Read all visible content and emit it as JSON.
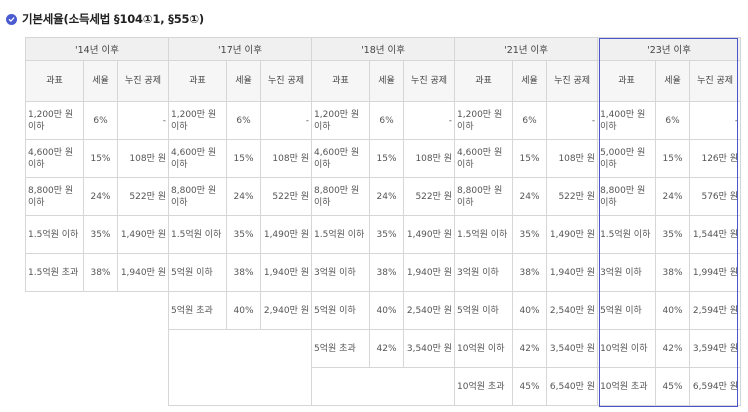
{
  "heading": {
    "icon": "check-circle-icon",
    "text": "기본세율(소득세법 §104①1, §55①)",
    "accent": "#4a5bd0"
  },
  "highlight_color": "#4a55c8",
  "periods": [
    {
      "label": "'14년 이후",
      "headers": [
        "과표",
        "세율",
        "누진 공제"
      ],
      "rows": [
        [
          "1,200만 원 이하",
          "6%",
          "-"
        ],
        [
          "4,600만 원 이하",
          "15%",
          "108만 원"
        ],
        [
          "8,800만 원 이하",
          "24%",
          "522만 원"
        ],
        [
          "1.5억원 이하",
          "35%",
          "1,490만 원"
        ],
        [
          "1.5억원 초과",
          "38%",
          "1,940만 원"
        ]
      ]
    },
    {
      "label": "'17년 이후",
      "headers": [
        "과표",
        "세율",
        "누진 공제"
      ],
      "rows": [
        [
          "1,200만 원 이하",
          "6%",
          "-"
        ],
        [
          "4,600만 원 이하",
          "15%",
          "108만 원"
        ],
        [
          "8,800만 원 이하",
          "24%",
          "522만 원"
        ],
        [
          "1.5억원 이하",
          "35%",
          "1,490만 원"
        ],
        [
          "5억원 이하",
          "38%",
          "1,940만 원"
        ],
        [
          "5억원 초과",
          "40%",
          "2,940만 원"
        ]
      ]
    },
    {
      "label": "'18년 이후",
      "headers": [
        "과표",
        "세율",
        "누진 공제"
      ],
      "rows": [
        [
          "1,200만 원 이하",
          "6%",
          "-"
        ],
        [
          "4,600만 원 이하",
          "15%",
          "108만 원"
        ],
        [
          "8,800만 원 이하",
          "24%",
          "522만 원"
        ],
        [
          "1.5억원 이하",
          "35%",
          "1,490만 원"
        ],
        [
          "3억원 이하",
          "38%",
          "1,940만 원"
        ],
        [
          "5억원 이하",
          "40%",
          "2,540만 원"
        ],
        [
          "5억원 초과",
          "42%",
          "3,540만 원"
        ]
      ]
    },
    {
      "label": "'21년 이후",
      "headers": [
        "과표",
        "세율",
        "누진 공제"
      ],
      "rows": [
        [
          "1,200만 원 이하",
          "6%",
          "-"
        ],
        [
          "4,600만 원 이하",
          "15%",
          "108만 원"
        ],
        [
          "8,800만 원 이하",
          "24%",
          "522만 원"
        ],
        [
          "1.5억원 이하",
          "35%",
          "1,490만 원"
        ],
        [
          "3억원 이하",
          "38%",
          "1,940만 원"
        ],
        [
          "5억원 이하",
          "40%",
          "2,540만 원"
        ],
        [
          "10억원 이하",
          "42%",
          "3,540만 원"
        ],
        [
          "10억원 초과",
          "45%",
          "6,540만 원"
        ]
      ]
    },
    {
      "label": "'23년 이후",
      "headers": [
        "과표",
        "세율",
        "누진 공제"
      ],
      "rows": [
        [
          "1,400만 원 이하",
          "6%",
          "-"
        ],
        [
          "5,000만 원 이하",
          "15%",
          "126만 원"
        ],
        [
          "8,800만 원 이하",
          "24%",
          "576만 원"
        ],
        [
          "1.5억원 이하",
          "35%",
          "1,544만 원"
        ],
        [
          "3억원 이하",
          "38%",
          "1,994만 원"
        ],
        [
          "5억원 이하",
          "40%",
          "2,594만 원"
        ],
        [
          "10억원 이하",
          "42%",
          "3,594만 원"
        ],
        [
          "10억원 초과",
          "45%",
          "6,594만 원"
        ]
      ]
    }
  ]
}
